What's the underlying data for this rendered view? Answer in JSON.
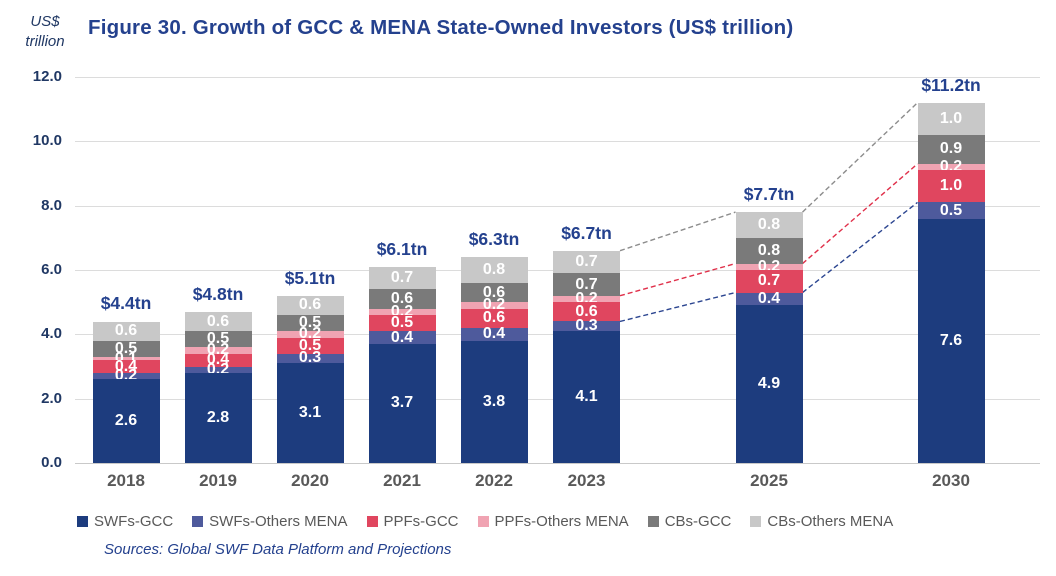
{
  "figure": {
    "unit_line1": "US$",
    "unit_line2": "trillion",
    "title": "Figure 30. Growth of GCC & MENA State-Owned Investors (US$ trillion)",
    "source": "Sources: Global SWF Data Platform and Projections"
  },
  "chart_data": {
    "type": "bar",
    "stacked": true,
    "title": "Figure 30. Growth of GCC & MENA State-Owned Investors (US$ trillion)",
    "ylabel": "US$ trillion",
    "xlabel": "",
    "ylim": [
      0,
      12
    ],
    "y_ticks": [
      "12.0",
      "10.0",
      "8.0",
      "6.0",
      "4.0",
      "2.0",
      "0.0"
    ],
    "grid": true,
    "legend_position": "bottom",
    "categories": [
      "2018",
      "2019",
      "2020",
      "2021",
      "2022",
      "2023",
      "2025",
      "2030"
    ],
    "series": [
      {
        "name": "SWFs-GCC",
        "color": "#1D3C7E",
        "values": [
          2.6,
          2.8,
          3.1,
          3.7,
          3.8,
          4.1,
          4.9,
          7.6
        ]
      },
      {
        "name": "SWFs-Others MENA",
        "color": "#4E5A9C",
        "values": [
          0.2,
          0.2,
          0.3,
          0.4,
          0.4,
          0.3,
          0.4,
          0.5
        ]
      },
      {
        "name": "PPFs-GCC",
        "color": "#E0465F",
        "values": [
          0.4,
          0.4,
          0.5,
          0.5,
          0.6,
          0.6,
          0.7,
          1.0
        ]
      },
      {
        "name": "PPFs-Others MENA",
        "color": "#F0A3B2",
        "values": [
          0.1,
          0.2,
          0.2,
          0.2,
          0.2,
          0.2,
          0.2,
          0.2
        ]
      },
      {
        "name": "CBs-GCC",
        "color": "#7A7A7A",
        "values": [
          0.5,
          0.5,
          0.5,
          0.6,
          0.6,
          0.7,
          0.8,
          0.9
        ]
      },
      {
        "name": "CBs-Others MENA",
        "color": "#C8C8C8",
        "values": [
          0.6,
          0.6,
          0.6,
          0.7,
          0.8,
          0.7,
          0.8,
          1.0
        ]
      }
    ],
    "totals": [
      "$4.4tn",
      "$4.8tn",
      "$5.1tn",
      "$6.1tn",
      "$6.3tn",
      "$6.7tn",
      "$7.7tn",
      "$11.2tn"
    ],
    "projections": {
      "between_categories": [
        "2023",
        "2025",
        "2030"
      ],
      "lines": [
        {
          "after_series": "SWFs-Others MENA",
          "color": "#2B4590"
        },
        {
          "after_series": "PPFs-Others MENA",
          "color": "#E0304A"
        },
        {
          "after_series": "CBs-Others MENA",
          "color": "#8C8C8C"
        }
      ]
    }
  }
}
